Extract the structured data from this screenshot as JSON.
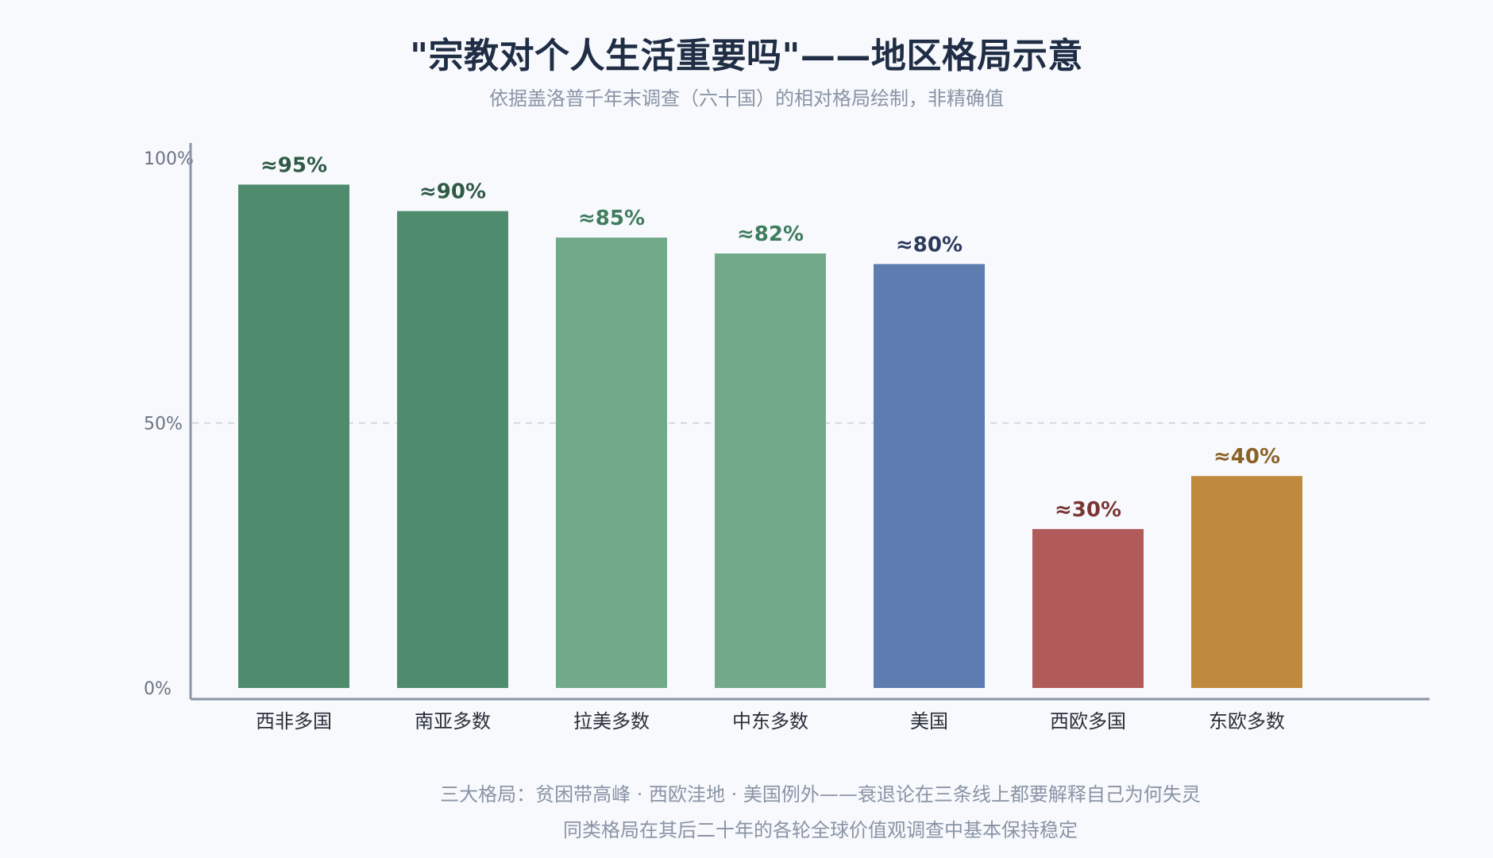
{
  "title": "\"宗教对个人生活重要吗\"——地区格局示意",
  "subtitle": "依据盖洛普千年末调查（六十国）的相对格局绘制，非精确值",
  "footnotes": [
    "三大格局：贫困带高峰 · 西欧洼地 · 美国例外——衰退论在三条线上都要解释自己为何失灵",
    "同类格局在其后二十年的各轮全球价值观调查中基本保持稳定"
  ],
  "colors": {
    "axis": "#8a94a6",
    "grid": "#c9ced8",
    "tick_text": "#6b7385",
    "category_text": "#2a2f3a"
  },
  "chart_data": {
    "type": "bar",
    "categories": [
      "西非多国",
      "南亚多数",
      "拉美多数",
      "中东多数",
      "美国",
      "西欧多国",
      "东欧多数"
    ],
    "values": [
      95,
      90,
      85,
      82,
      80,
      30,
      40
    ],
    "value_labels": [
      "≈95%",
      "≈90%",
      "≈85%",
      "≈82%",
      "≈80%",
      "≈30%",
      "≈40%"
    ],
    "bar_colors": [
      "#4f8c6e",
      "#4f8c6e",
      "#72a98a",
      "#72a98a",
      "#5d7db1",
      "#b05b5a",
      "#c08a3e"
    ],
    "label_colors": [
      "#2f5a45",
      "#2f5a45",
      "#3f7d5e",
      "#3f7d5e",
      "#2c3a5c",
      "#7a3534",
      "#8a6228"
    ],
    "yticks": [
      0,
      50,
      100
    ],
    "ytick_labels": [
      "0%",
      "50%",
      "100%"
    ],
    "ylim": [
      0,
      100
    ],
    "grid": "dashed at 50% only",
    "xlabel": "",
    "ylabel": ""
  }
}
